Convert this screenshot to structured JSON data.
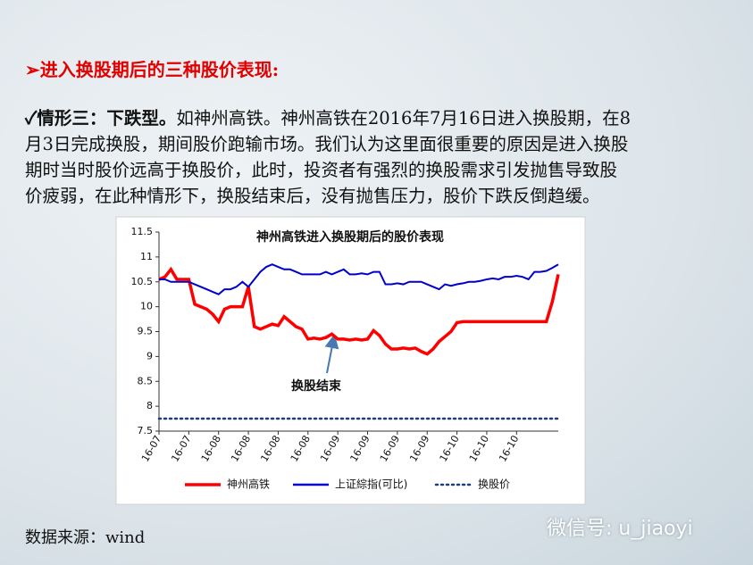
{
  "header": "➢进入换股期后的三种股价表现:",
  "paragraph": {
    "lead": "✓情形三：下跌型。",
    "lines": [
      "如神州高铁。神州高铁在2016年7月16日进入换股期，在8",
      "月3日完成换股，期间股价跑输市场。我们认为这里面很重要的原因是进入换股",
      "期时当时股价远高于换股价，此时，投资者有强烈的换股需求引发抛售导致股",
      "价疲弱，在此种情形下，换股结束后，没有抛售压力，股价下跌反倒趋缓。"
    ]
  },
  "source": "数据来源：wind",
  "watermark": "微信号: u_jiaoyi",
  "chart_data": {
    "type": "line",
    "title": "神州高铁进入换股期后的股价表现",
    "annotation": "换股结束",
    "categories": [
      "16-07",
      null,
      null,
      null,
      null,
      "16-07",
      null,
      null,
      null,
      null,
      "16-08",
      null,
      null,
      null,
      null,
      "16-08",
      null,
      null,
      null,
      null,
      "16-08",
      null,
      null,
      null,
      null,
      "16-08",
      null,
      null,
      null,
      null,
      "16-09",
      null,
      null,
      null,
      null,
      "16-09",
      null,
      null,
      null,
      null,
      "16-09",
      null,
      null,
      null,
      null,
      "16-09",
      null,
      null,
      null,
      null,
      "16-10",
      null,
      null,
      null,
      null,
      "16-10",
      null,
      null,
      null,
      null,
      "16-10",
      null,
      null,
      null,
      null,
      null,
      null,
      null
    ],
    "ylim": [
      7.5,
      11.5
    ],
    "yticks": [
      11.5,
      11,
      10.5,
      10,
      9.5,
      9,
      8.5,
      8,
      7.5
    ],
    "series": [
      {
        "name": "神州高铁",
        "color": "#ff0000",
        "style": "solid",
        "values": [
          10.55,
          10.6,
          10.75,
          10.55,
          10.55,
          10.55,
          10.05,
          10.0,
          9.95,
          9.85,
          9.7,
          9.95,
          10.0,
          10.0,
          10.0,
          10.4,
          9.6,
          9.55,
          9.6,
          9.65,
          9.62,
          9.8,
          9.7,
          9.6,
          9.55,
          9.35,
          9.37,
          9.35,
          9.38,
          9.45,
          9.35,
          9.35,
          9.33,
          9.35,
          9.33,
          9.35,
          9.52,
          9.42,
          9.25,
          9.15,
          9.15,
          9.17,
          9.15,
          9.17,
          9.1,
          9.05,
          9.15,
          9.3,
          9.4,
          9.5,
          9.68,
          9.7,
          9.7,
          9.7,
          9.7,
          9.7,
          9.7,
          9.7,
          9.7,
          9.7,
          9.7,
          9.7,
          9.7,
          9.7,
          9.7,
          9.7,
          10.1,
          10.65
        ]
      },
      {
        "name": "上证綜指(可比)",
        "color": "#0000cc",
        "style": "solid",
        "values": [
          10.55,
          10.55,
          10.5,
          10.5,
          10.5,
          10.5,
          10.45,
          10.4,
          10.35,
          10.3,
          10.25,
          10.35,
          10.35,
          10.4,
          10.5,
          10.4,
          10.55,
          10.7,
          10.8,
          10.85,
          10.8,
          10.75,
          10.75,
          10.7,
          10.65,
          10.65,
          10.65,
          10.65,
          10.7,
          10.65,
          10.7,
          10.75,
          10.65,
          10.65,
          10.67,
          10.65,
          10.7,
          10.7,
          10.45,
          10.45,
          10.47,
          10.45,
          10.5,
          10.5,
          10.5,
          10.45,
          10.4,
          10.35,
          10.45,
          10.42,
          10.45,
          10.47,
          10.5,
          10.5,
          10.52,
          10.55,
          10.57,
          10.55,
          10.6,
          10.6,
          10.62,
          10.6,
          10.55,
          10.7,
          10.7,
          10.72,
          10.78,
          10.85
        ]
      },
      {
        "name": "换股价",
        "color": "#1f3d7a",
        "style": "dotted",
        "values": [
          7.75,
          7.75,
          7.75,
          7.75,
          7.75,
          7.75,
          7.75,
          7.75,
          7.75,
          7.75,
          7.75,
          7.75,
          7.75,
          7.75,
          7.75,
          7.75,
          7.75,
          7.75,
          7.75,
          7.75,
          7.75,
          7.75,
          7.75,
          7.75,
          7.75,
          7.75,
          7.75,
          7.75,
          7.75,
          7.75,
          7.75,
          7.75,
          7.75,
          7.75,
          7.75,
          7.75,
          7.75,
          7.75,
          7.75,
          7.75,
          7.75,
          7.75,
          7.75,
          7.75,
          7.75,
          7.75,
          7.75,
          7.75,
          7.75,
          7.75,
          7.75,
          7.75,
          7.75,
          7.75,
          7.75,
          7.75,
          7.75,
          7.75,
          7.75,
          7.75,
          7.75,
          7.75,
          7.75,
          7.75,
          7.75,
          7.75,
          7.75,
          7.75
        ]
      }
    ]
  }
}
